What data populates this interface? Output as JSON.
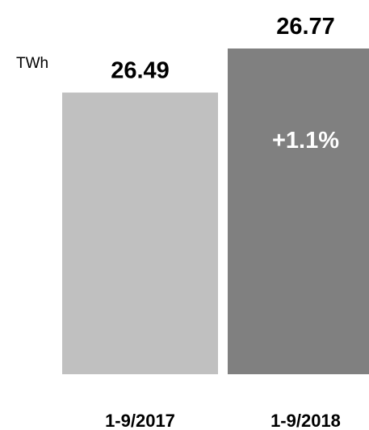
{
  "chart_data": {
    "type": "bar",
    "unit_label": "TWh",
    "categories": [
      "1-9/2017",
      "1-9/2018"
    ],
    "values": [
      26.49,
      26.77
    ],
    "value_labels": [
      "26.49",
      "26.77"
    ],
    "change_label": "+1.1%",
    "ylim": [
      24.7,
      26.77
    ],
    "grid": false,
    "colors": [
      "#c0c0c0",
      "#808080"
    ]
  }
}
